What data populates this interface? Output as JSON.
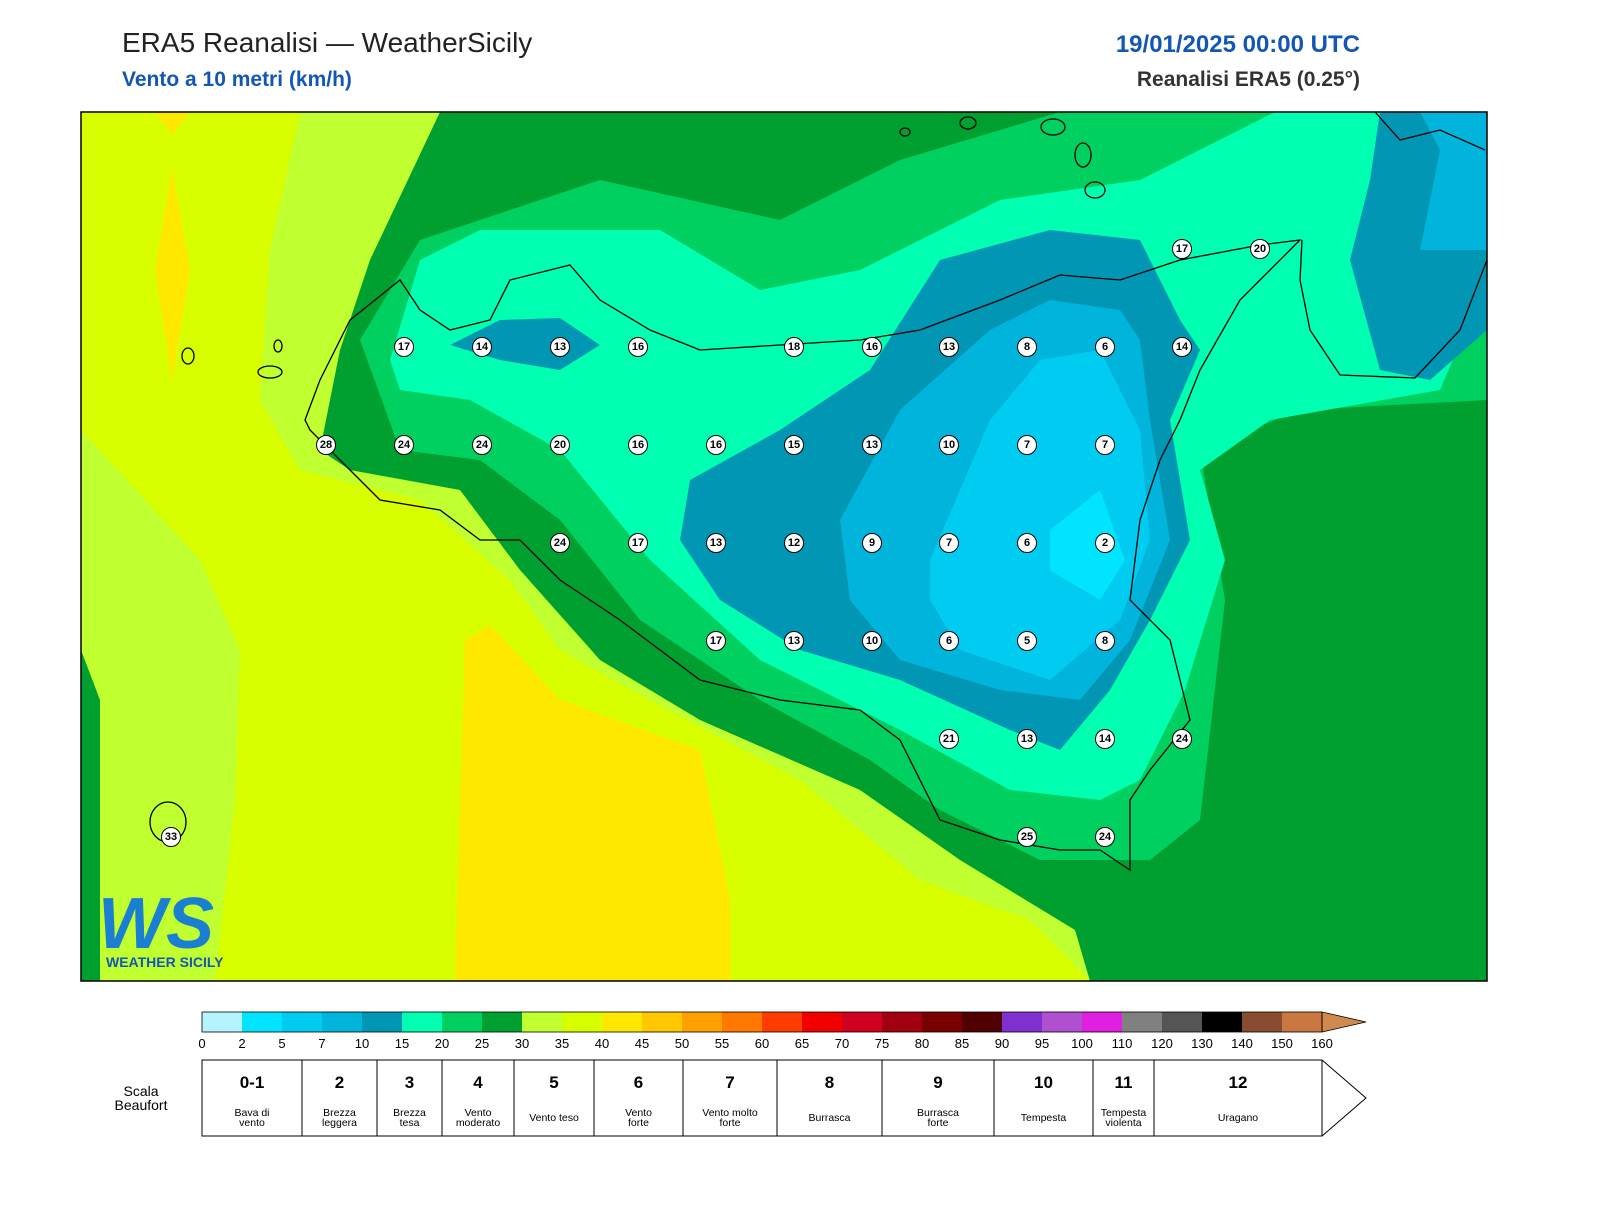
{
  "header": {
    "title": "ERA5 Reanalisi — WeatherSicily",
    "subtitle": "Vento a 10 metri (km/h)",
    "datetime": "19/01/2025 00:00 UTC",
    "source": "Reanalisi ERA5 (0.25°)"
  },
  "stations": [
    17,
    20,
    17,
    14,
    13,
    16,
    18,
    16,
    13,
    8,
    6,
    14,
    28,
    24,
    24,
    20,
    16,
    16,
    15,
    13,
    10,
    7,
    7,
    24,
    17,
    13,
    12,
    9,
    7,
    6,
    2,
    17,
    13,
    10,
    6,
    5,
    8,
    21,
    13,
    14,
    24,
    33,
    25,
    24
  ],
  "colorbar": {
    "ticks": [
      0,
      2,
      5,
      7,
      10,
      15,
      20,
      25,
      30,
      35,
      40,
      45,
      50,
      55,
      60,
      65,
      70,
      75,
      80,
      85,
      90,
      95,
      100,
      110,
      120,
      130,
      140,
      150,
      160
    ],
    "colors": [
      "#b4f4ff",
      "#00e4ff",
      "#00ccf2",
      "#00b4dc",
      "#0096b4",
      "#00ffb0",
      "#00d060",
      "#00a030",
      "#c0ff30",
      "#d8ff00",
      "#ffe800",
      "#ffc800",
      "#ffa000",
      "#ff7800",
      "#ff3c00",
      "#f00000",
      "#d00020",
      "#a00010",
      "#780000",
      "#500000",
      "#8030d0",
      "#b050d0",
      "#e020e0",
      "#808080",
      "#555555",
      "#000000",
      "#884c30",
      "#c87840"
    ],
    "extend_color": "#d08a50"
  },
  "beaufort": {
    "label": [
      "Scala",
      "Beaufort"
    ],
    "scale": [
      {
        "force": "0-1",
        "description": [
          "Bava di",
          "vento"
        ]
      },
      {
        "force": "2",
        "description": [
          "Brezza",
          "leggera"
        ]
      },
      {
        "force": "3",
        "description": [
          "Brezza",
          "tesa"
        ]
      },
      {
        "force": "4",
        "description": [
          "Vento",
          "moderato"
        ]
      },
      {
        "force": "5",
        "description": [
          "Vento teso"
        ]
      },
      {
        "force": "6",
        "description": [
          "Vento",
          "forte"
        ]
      },
      {
        "force": "7",
        "description": [
          "Vento molto",
          "forte"
        ]
      },
      {
        "force": "8",
        "description": [
          "Burrasca"
        ]
      },
      {
        "force": "9",
        "description": [
          "Burrasca",
          "forte"
        ]
      },
      {
        "force": "10",
        "description": [
          "Tempesta"
        ]
      },
      {
        "force": "11",
        "description": [
          "Tempesta",
          "violenta"
        ]
      },
      {
        "force": "12",
        "description": [
          "Uragano"
        ]
      }
    ]
  },
  "logo": {
    "mark": "WS",
    "text": "WEATHER SICILY"
  }
}
